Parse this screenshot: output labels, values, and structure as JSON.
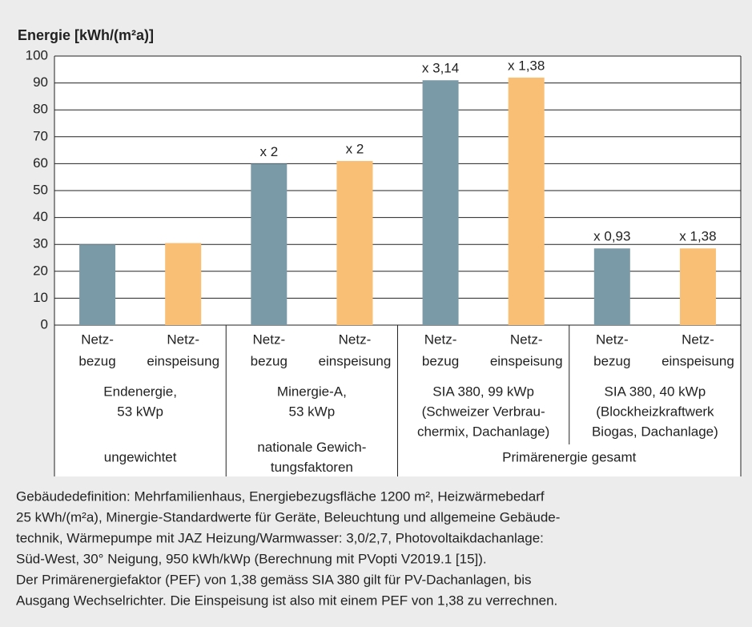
{
  "chart_data": {
    "type": "bar",
    "title": "Energie [kWh/(m²a)]",
    "ylim": [
      0,
      100
    ],
    "yticks": [
      0,
      10,
      20,
      30,
      40,
      50,
      60,
      70,
      80,
      90,
      100
    ],
    "grid": true,
    "groups": [
      {
        "lines": [
          "Endenergie,",
          "53 kWp"
        ]
      },
      {
        "lines": [
          "Minergie-A,",
          "53 kWp"
        ]
      },
      {
        "lines": [
          "SIA 380, 99 kWp",
          "(Schweizer Verbrau-",
          "chermix, Dachanlage)"
        ]
      },
      {
        "lines": [
          "SIA 380, 40 kWp",
          "(Blockheizkraftwerk",
          "Biogas, Dachanlage)"
        ]
      }
    ],
    "sections": [
      {
        "lines": [
          "ungewichtet"
        ],
        "span": 1
      },
      {
        "lines": [
          "nationale Gewich-",
          "tungsfaktoren"
        ],
        "span": 1
      },
      {
        "lines": [
          "Primärenergie gesamt"
        ],
        "span": 2
      }
    ],
    "series": [
      {
        "label_lines": [
          "Netz-",
          "bezug"
        ],
        "color": "#7b9aa8",
        "values": [
          30,
          60,
          91,
          28.5
        ],
        "labels": [
          null,
          "x 2",
          "x 3,14",
          "x 0,93"
        ]
      },
      {
        "label_lines": [
          "Netz-",
          "einspeisung"
        ],
        "color": "#f9bf75",
        "values": [
          30.5,
          61,
          92,
          28.5
        ],
        "labels": [
          null,
          "x 2",
          "x 1,38",
          "x 1,38"
        ]
      }
    ],
    "footnote": [
      "Gebäudedefinition: Mehrfamilienhaus, Energiebezugsfläche 1200 m², Heizwärmebedarf",
      "25 kWh/(m²a), Minergie-Standardwerte für Geräte, Beleuchtung und allgemeine Gebäude-",
      "technik, Wärmepumpe mit JAZ Heizung/Warmwasser: 3,0/2,7, Photovoltaikdachanlage:",
      "Süd-West, 30° Neigung, 950 kWh/kWp (Berechnung mit PVopti V2019.1 [15]).",
      "Der Primärenergiefaktor (PEF) von 1,38 gemäss SIA 380 gilt für PV-Dachanlagen, bis",
      "Ausgang Wechselrichter. Die Einspeisung ist also mit einem PEF von 1,38 zu verrechnen."
    ]
  }
}
